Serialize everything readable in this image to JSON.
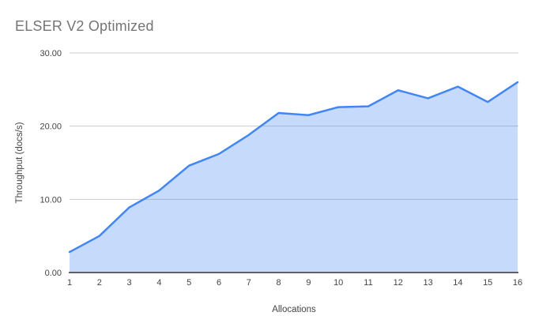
{
  "chart": {
    "title": "ELSER V2 Optimized"
  },
  "chart_data": {
    "type": "area",
    "title": "ELSER V2 Optimized",
    "xlabel": "Allocations",
    "ylabel": "Throughput (docs/s)",
    "x": [
      1,
      2,
      3,
      4,
      5,
      6,
      7,
      8,
      9,
      10,
      11,
      12,
      13,
      14,
      15,
      16
    ],
    "series": [
      {
        "values": [
          2.8,
          5.0,
          8.9,
          11.2,
          14.6,
          16.2,
          18.8,
          21.8,
          21.5,
          22.6,
          22.7,
          24.9,
          23.8,
          25.4,
          23.3,
          26.0
        ]
      }
    ],
    "ylim": [
      0,
      30
    ],
    "y_ticks": [
      0,
      10,
      20,
      30
    ],
    "y_tick_labels": [
      "0.00",
      "10.00",
      "20.00",
      "30.00"
    ],
    "grid": true,
    "legend": "none",
    "colors": {
      "line": "#4285f4",
      "fill": "rgba(66,133,244,0.3)",
      "grid": "#cccccc",
      "axis_line": "#333333",
      "tick_label": "#444444",
      "title": "#757575"
    }
  }
}
